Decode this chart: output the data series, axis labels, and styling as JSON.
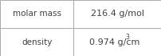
{
  "rows": [
    {
      "label": "molar mass",
      "value": "216.4 g/mol",
      "superscript": null
    },
    {
      "label": "density",
      "value": "0.974 g/cm",
      "superscript": "3"
    }
  ],
  "background_color": "#ffffff",
  "border_color": "#aaaaaa",
  "text_color": "#404040",
  "label_fontsize": 7.5,
  "value_fontsize": 8.0,
  "sup_fontsize": 5.5,
  "col_split": 0.455
}
